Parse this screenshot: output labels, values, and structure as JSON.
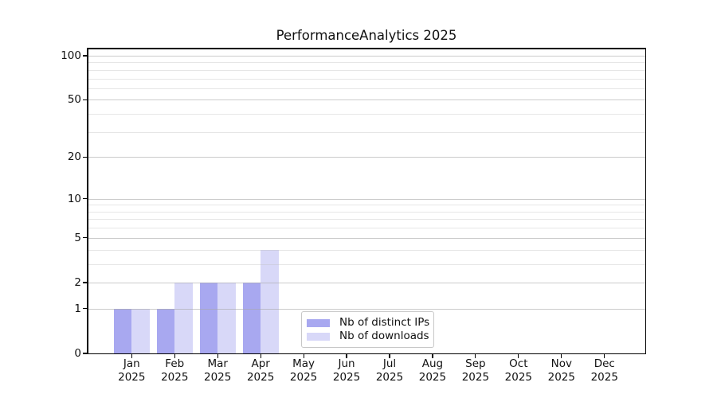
{
  "chart_data": {
    "type": "bar",
    "title": "PerformanceAnalytics 2025",
    "categories": [
      "Jan 2025",
      "Feb 2025",
      "Mar 2025",
      "Apr 2025",
      "May 2025",
      "Jun 2025",
      "Jul 2025",
      "Aug 2025",
      "Sep 2025",
      "Oct 2025",
      "Nov 2025",
      "Dec 2025"
    ],
    "series": [
      {
        "name": "Nb of distinct IPs",
        "color": "#a8a8f0",
        "values": [
          1,
          1,
          2,
          2,
          0,
          0,
          0,
          0,
          0,
          0,
          0,
          0
        ]
      },
      {
        "name": "Nb of downloads",
        "color": "#d8d8f8",
        "values": [
          1,
          2,
          2,
          4,
          0,
          0,
          0,
          0,
          0,
          0,
          0,
          0
        ]
      }
    ],
    "xlabel": "",
    "ylabel": "",
    "y_scale": "log10(value+1)",
    "y_ticks": [
      0,
      1,
      2,
      5,
      10,
      20,
      50,
      100
    ],
    "y_minor_gridlines": [
      3,
      4,
      6,
      7,
      8,
      9,
      30,
      40,
      60,
      70,
      80,
      90
    ],
    "ylim": [
      0,
      112
    ],
    "grid": "horizontal",
    "legend_position": "bottom-center-inside"
  },
  "colors": {
    "bar_distinct_ips": "#a8a8f0",
    "bar_downloads": "#d8d8f8",
    "major_grid": "#d2d2d2",
    "minor_grid": "#eaeaea",
    "axis": "#000000",
    "background": "#ffffff"
  }
}
